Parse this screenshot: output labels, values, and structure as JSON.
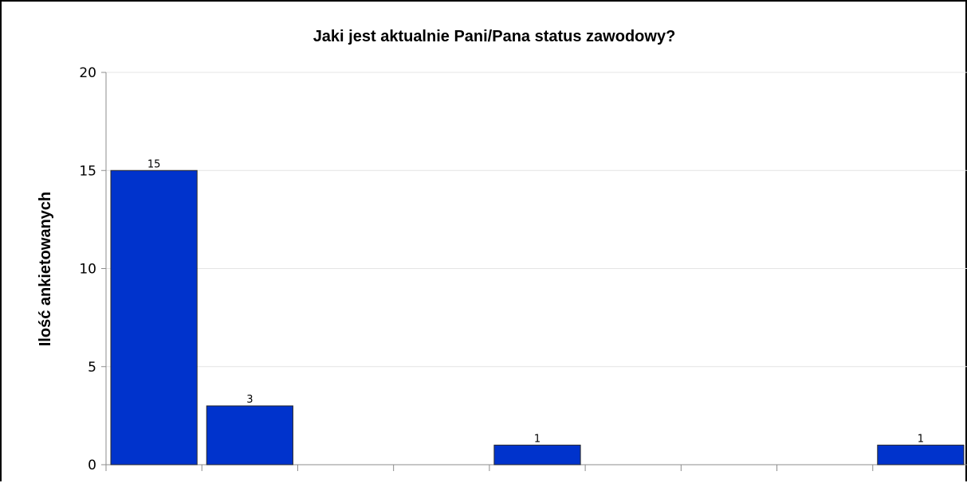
{
  "chart_data": {
    "type": "bar",
    "title": "Jaki jest aktualnie Pani/Pana status zawodowy?",
    "xlabel": "",
    "ylabel": "Ilość ankietowanych",
    "ylim": [
      0,
      20
    ],
    "yticks": [
      0,
      5,
      10,
      15,
      20
    ],
    "grid": true,
    "categories_count": 9,
    "values": [
      15,
      3,
      0,
      0,
      1,
      0,
      0,
      0,
      1
    ],
    "data_labels": [
      "15",
      "3",
      "",
      "",
      "1",
      "",
      "",
      "",
      "1"
    ],
    "colors": {
      "bar": "#0033cc",
      "bar_border": "#2a2a2a",
      "grid": "#e4e4e4",
      "axis": "#8c8c8c",
      "background": "#ffffff"
    }
  }
}
